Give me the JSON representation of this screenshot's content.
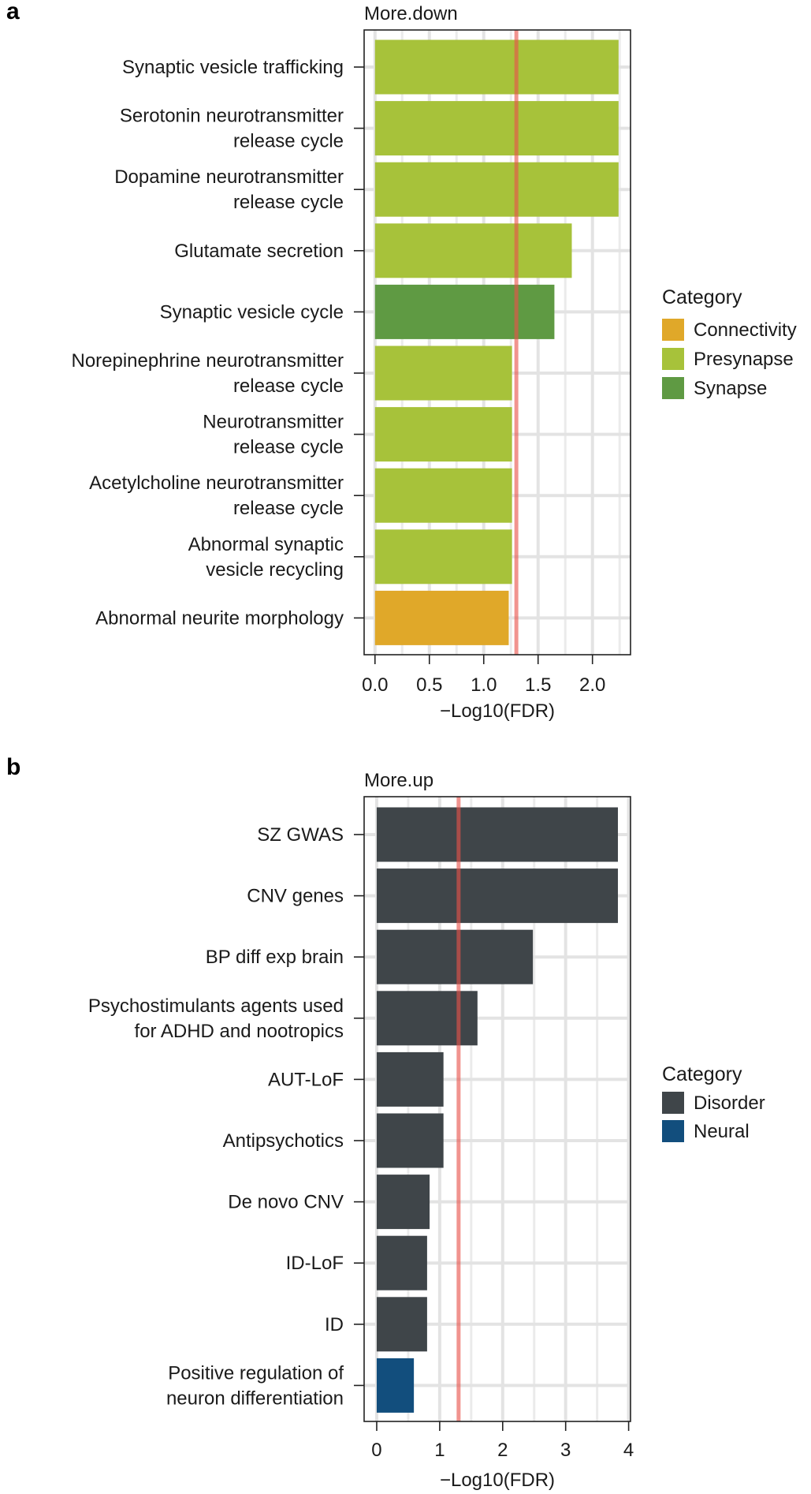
{
  "chart_data": [
    {
      "type": "bar",
      "orientation": "horizontal",
      "panel_letter": "a",
      "title": "More.down",
      "xlabel": "−Log10(FDR)",
      "xlim": [
        -0.1,
        2.35
      ],
      "xticks": [
        0,
        0.5,
        1,
        1.5,
        2
      ],
      "xtick_labels": [
        "0.0",
        "0.5",
        "1.0",
        "1.5",
        "2.0"
      ],
      "grid": true,
      "threshold": 1.3,
      "threshold_color": "#e8524a",
      "categories": [
        [
          "Synaptic vesicle trafficking"
        ],
        [
          "Serotonin neurotransmitter",
          "release cycle"
        ],
        [
          "Dopamine neurotransmitter",
          "release cycle"
        ],
        [
          "Glutamate secretion"
        ],
        [
          "Synaptic vesicle cycle"
        ],
        [
          "Norepinephrine neurotransmitter",
          "release cycle"
        ],
        [
          "Neurotransmitter",
          "release cycle"
        ],
        [
          "Acetylcholine neurotransmitter",
          "release cycle"
        ],
        [
          "Abnormal synaptic",
          "vesicle recycling"
        ],
        [
          "Abnormal neurite morphology"
        ]
      ],
      "values": [
        2.24,
        2.24,
        2.24,
        1.81,
        1.65,
        1.26,
        1.26,
        1.26,
        1.26,
        1.23
      ],
      "bar_category": [
        "Presynapse",
        "Presynapse",
        "Presynapse",
        "Presynapse",
        "Synapse",
        "Presynapse",
        "Presynapse",
        "Presynapse",
        "Presynapse",
        "Connectivity"
      ],
      "legend": {
        "title": "Category",
        "placement": "right",
        "entries": [
          {
            "label": "Connectivity",
            "color": "#e0a829"
          },
          {
            "label": "Presynapse",
            "color": "#a7c23a"
          },
          {
            "label": "Synapse",
            "color": "#5f9a43"
          }
        ]
      }
    },
    {
      "type": "bar",
      "orientation": "horizontal",
      "panel_letter": "b",
      "title": "More.up",
      "xlabel": "−Log10(FDR)",
      "xlim": [
        -0.2,
        4.03
      ],
      "xticks": [
        0,
        1,
        2,
        3,
        4
      ],
      "xtick_labels": [
        "0",
        "1",
        "2",
        "3",
        "4"
      ],
      "grid": true,
      "threshold": 1.3,
      "threshold_color": "#e8524a",
      "categories": [
        [
          "SZ GWAS"
        ],
        [
          "CNV genes"
        ],
        [
          "BP diff exp brain"
        ],
        [
          "Psychostimulants agents used",
          "for ADHD and nootropics"
        ],
        [
          "AUT-LoF"
        ],
        [
          "Antipsychotics"
        ],
        [
          "De novo CNV"
        ],
        [
          "ID-LoF"
        ],
        [
          "ID"
        ],
        [
          "Positive regulation of",
          "neuron differentiation"
        ]
      ],
      "values": [
        3.83,
        3.83,
        2.48,
        1.6,
        1.06,
        1.06,
        0.84,
        0.8,
        0.8,
        0.59
      ],
      "bar_category": [
        "Disorder",
        "Disorder",
        "Disorder",
        "Disorder",
        "Disorder",
        "Disorder",
        "Disorder",
        "Disorder",
        "Disorder",
        "Neural"
      ],
      "legend": {
        "title": "Category",
        "placement": "right",
        "entries": [
          {
            "label": "Disorder",
            "color": "#3f4549"
          },
          {
            "label": "Neural",
            "color": "#124e7d"
          }
        ]
      }
    }
  ]
}
